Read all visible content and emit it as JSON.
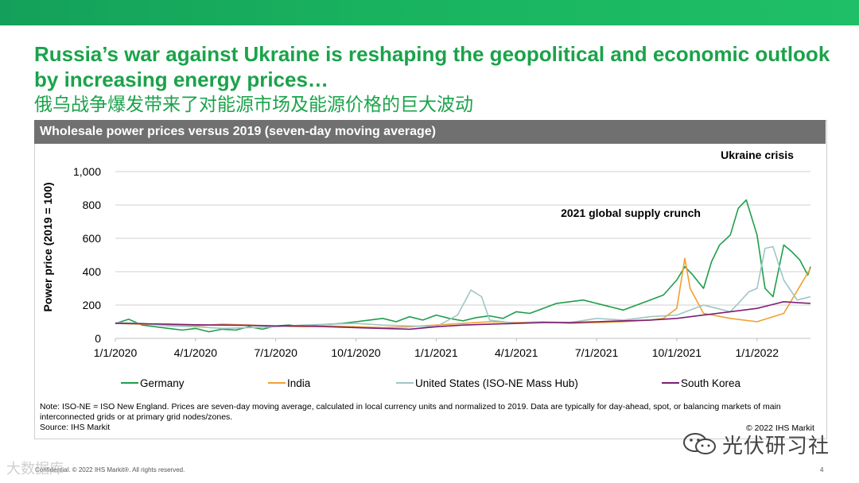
{
  "slide": {
    "title": "Russia’s war against Ukraine is reshaping the geopolitical and economic outlook by increasing energy prices…",
    "subtitle_cn": "俄乌战争爆发带来了对能源市场及能源价格的巨大波动",
    "panel_title": "Wholesale power prices versus 2019 (seven-day moving average)",
    "note": "Note: ISO-NE = ISO New England. Prices are seven-day moving average, calculated in local currency units and normalized to 2019. Data are typically for day-ahead, spot, or balancing markets of main interconnected grids or at primary grid nodes/zones.",
    "source": "Source: IHS Markit",
    "copyright": "© 2022 IHS Markit",
    "footer": "Confidential. © 2022 IHS Markit®. All rights reserved.",
    "page_number": "4",
    "watermark_left": "大数据库",
    "watermark_right": "光伏研习社"
  },
  "chart_data": {
    "type": "line",
    "title": "Wholesale power prices versus 2019 (seven-day moving average)",
    "xlabel": "",
    "ylabel": "Power price (2019 = 100)",
    "ylim": [
      0,
      1000
    ],
    "yticks": [
      0,
      200,
      400,
      600,
      800,
      1000
    ],
    "ytick_labels": [
      "0",
      "200",
      "400",
      "600",
      "800",
      "1,000"
    ],
    "xlim": [
      0,
      26
    ],
    "x_unit": "months since 1/1/2020",
    "xticks": [
      0,
      3,
      6,
      9,
      12,
      15,
      18,
      21,
      24
    ],
    "xtick_labels": [
      "1/1/2020",
      "4/1/2020",
      "7/1/2020",
      "10/1/2020",
      "1/1/2021",
      "4/1/2021",
      "7/1/2021",
      "10/1/2021",
      "1/1/2022"
    ],
    "gridlines": "horizontal",
    "legend_position": "bottom",
    "annotations": [
      {
        "text": "Ukraine crisis",
        "x": 24.5,
        "y": 1100
      },
      {
        "text": "2021 global supply crunch",
        "x": 16,
        "y": 750
      }
    ],
    "series": [
      {
        "name": "Germany",
        "color": "#1e9e4a",
        "x": [
          0,
          0.5,
          1,
          1.5,
          2,
          2.5,
          3,
          3.5,
          4,
          4.5,
          5,
          5.5,
          6,
          6.5,
          7,
          7.5,
          8,
          8.5,
          9,
          9.5,
          10,
          10.5,
          11,
          11.5,
          12,
          12.5,
          13,
          13.5,
          14,
          14.5,
          15,
          15.5,
          16,
          16.5,
          17,
          17.5,
          18,
          18.5,
          19,
          19.5,
          20,
          20.5,
          21,
          21.3,
          21.6,
          22,
          22.3,
          22.6,
          23,
          23.3,
          23.6,
          24,
          24.3,
          24.6,
          25,
          25.3,
          25.6,
          25.9,
          26
        ],
        "values": [
          90,
          115,
          80,
          70,
          60,
          50,
          60,
          40,
          55,
          50,
          70,
          55,
          75,
          80,
          70,
          80,
          85,
          90,
          100,
          110,
          120,
          100,
          130,
          110,
          140,
          120,
          105,
          125,
          135,
          120,
          160,
          150,
          180,
          210,
          220,
          230,
          210,
          190,
          170,
          200,
          230,
          260,
          350,
          430,
          380,
          300,
          460,
          560,
          620,
          780,
          830,
          620,
          300,
          250,
          560,
          520,
          470,
          380,
          430
        ]
      },
      {
        "name": "India",
        "color": "#f0a030",
        "x": [
          0,
          1,
          2,
          3,
          4,
          5,
          6,
          7,
          8,
          9,
          10,
          11,
          12,
          13,
          14,
          15,
          16,
          17,
          18,
          19,
          20,
          20.5,
          21,
          21.3,
          21.5,
          22,
          23,
          24,
          25,
          26
        ],
        "values": [
          90,
          85,
          80,
          75,
          85,
          80,
          75,
          70,
          75,
          70,
          65,
          70,
          80,
          90,
          100,
          95,
          100,
          90,
          95,
          100,
          110,
          120,
          180,
          480,
          300,
          150,
          120,
          100,
          150,
          420
        ]
      },
      {
        "name": "United States (ISO-NE Mass Hub)",
        "color": "#9fc6c4",
        "x": [
          0,
          1,
          2,
          3,
          4,
          5,
          6,
          7,
          8,
          9,
          10,
          11,
          12,
          12.8,
          13.3,
          13.7,
          14,
          15,
          16,
          17,
          18,
          19,
          20,
          21,
          22,
          22.5,
          23,
          23.3,
          23.7,
          24,
          24.3,
          24.6,
          25,
          25.5,
          26
        ],
        "values": [
          95,
          90,
          75,
          70,
          60,
          65,
          70,
          80,
          85,
          90,
          80,
          75,
          70,
          140,
          290,
          250,
          110,
          90,
          100,
          95,
          120,
          110,
          130,
          140,
          200,
          180,
          160,
          210,
          280,
          300,
          540,
          550,
          350,
          230,
          250
        ]
      },
      {
        "name": "South Korea",
        "color": "#7b1f74",
        "x": [
          0,
          1,
          2,
          3,
          4,
          5,
          6,
          7,
          8,
          9,
          10,
          11,
          12,
          13,
          14,
          15,
          16,
          17,
          18,
          19,
          20,
          21,
          22,
          23,
          24,
          24.5,
          25,
          25.5,
          26
        ],
        "values": [
          90,
          88,
          85,
          82,
          80,
          78,
          75,
          75,
          70,
          65,
          60,
          55,
          70,
          80,
          85,
          90,
          95,
          95,
          100,
          105,
          110,
          120,
          140,
          160,
          180,
          200,
          220,
          215,
          210
        ]
      }
    ]
  }
}
